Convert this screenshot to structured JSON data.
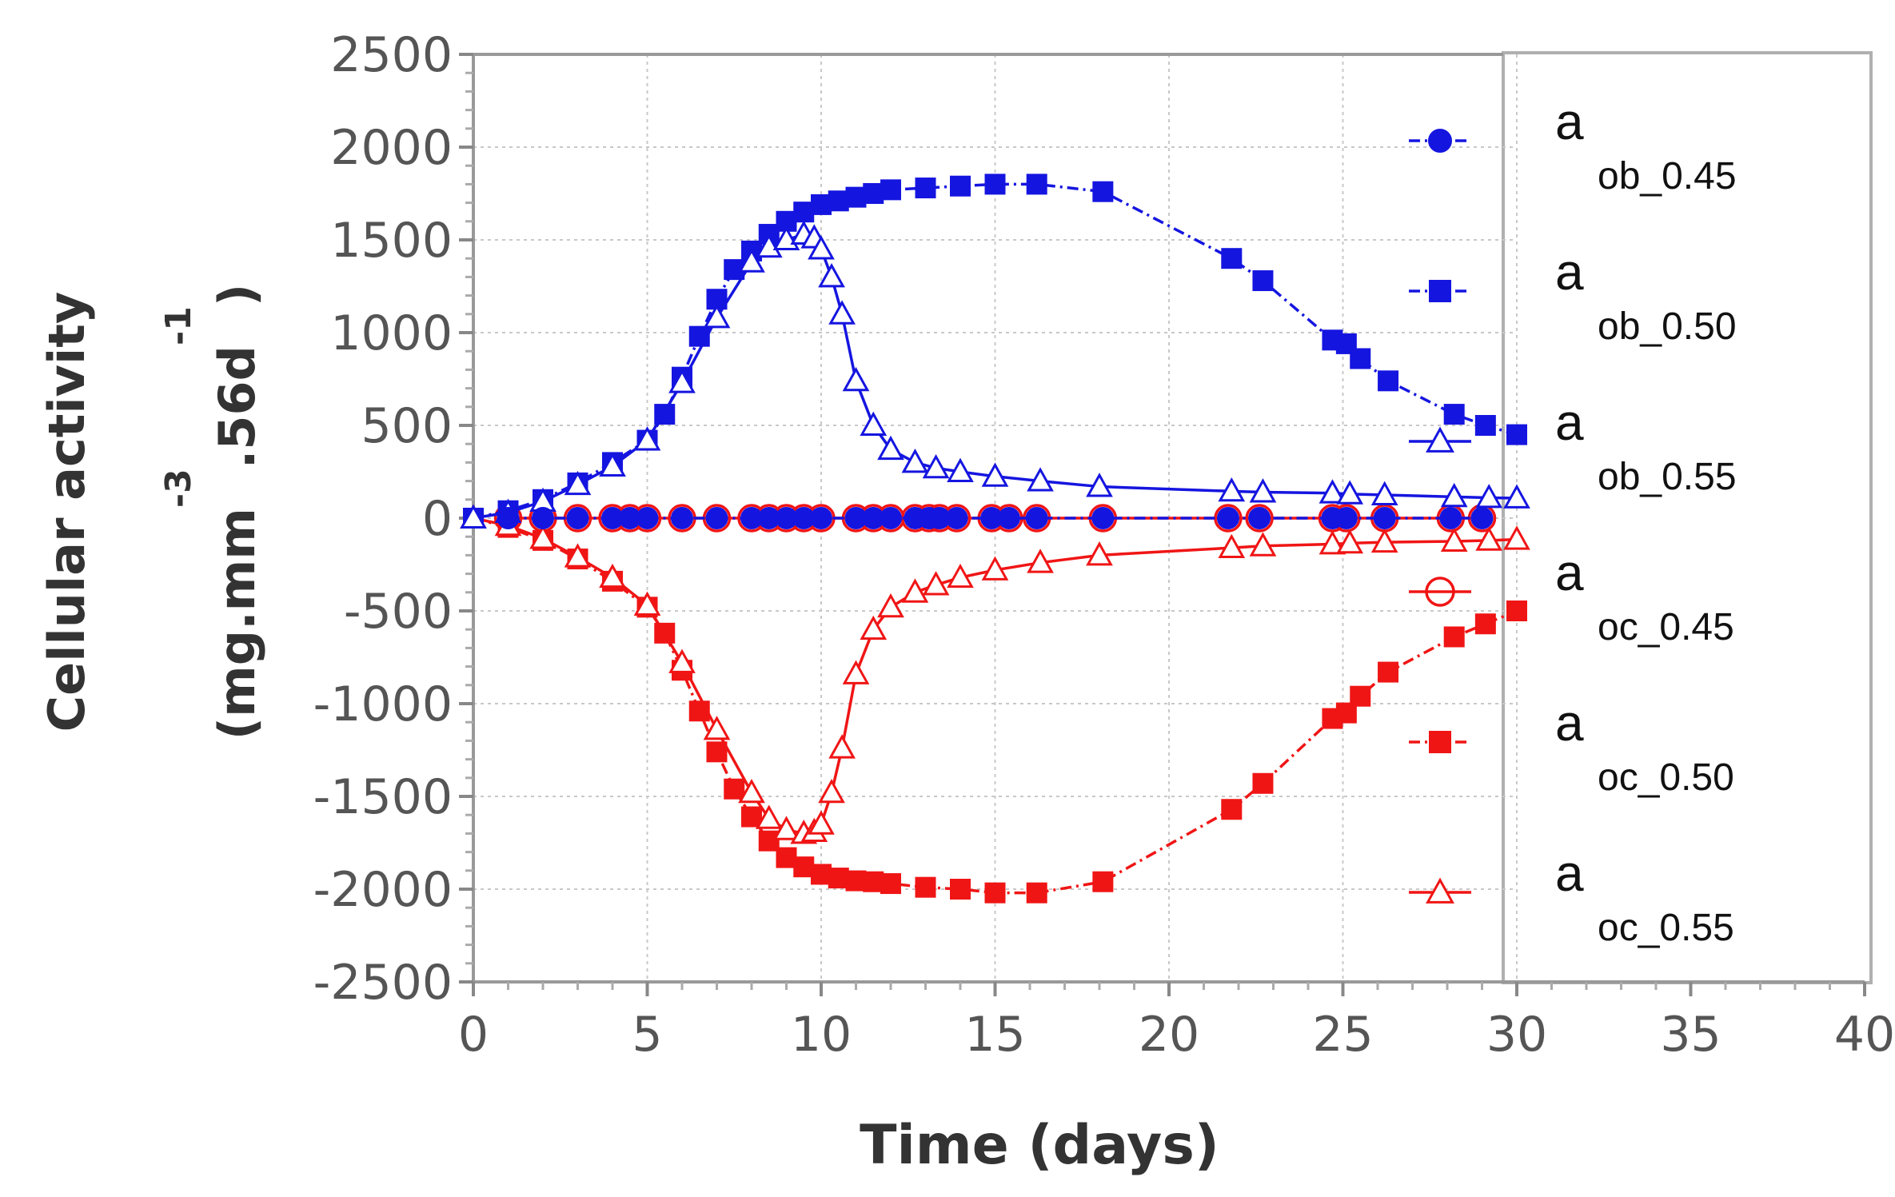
{
  "chart_data": {
    "type": "line",
    "xlabel": "Time (days)",
    "ylabel": {
      "line1": "Cellular activity",
      "line2_prefix": "(mg.mm",
      "line2_exp1": "-3",
      "line2_mid": ".56d",
      "line2_exp2": "-1",
      "line2_suffix": ")"
    },
    "xlim": [
      0,
      40
    ],
    "ylim": [
      -2500,
      2500
    ],
    "x_ticks": [
      "0",
      "5",
      "10",
      "15",
      "20",
      "25",
      "30",
      "35",
      "40"
    ],
    "y_ticks": [
      "2500",
      "2000",
      "1500",
      "1000",
      "500",
      "0",
      "-500",
      "-1000",
      "-1500",
      "-2000",
      "-2500"
    ],
    "grid": true,
    "legend_position": "right",
    "colors": {
      "blue": "#1515e0",
      "red": "#f01515",
      "grid": "#c8c8c8",
      "frame": "#b0b0b0"
    },
    "series": [
      {
        "legend_main": "a",
        "legend_sub": "ob_0.45",
        "color": "blue",
        "marker": "filled-circle",
        "line": "dashdot",
        "x": [
          1,
          2,
          3,
          4,
          4.5,
          5,
          6,
          7,
          8,
          8.5,
          9,
          9.5,
          10,
          11,
          11.5,
          12,
          12.7,
          13.1,
          13.4,
          13.9,
          14.9,
          15.4,
          16.2,
          18.1,
          21.7,
          22.6,
          24.7,
          25.1,
          26.2,
          28.1,
          29
        ],
        "y": [
          0,
          0,
          0,
          0,
          0,
          0,
          0,
          0,
          0,
          0,
          0,
          0,
          0,
          0,
          0,
          0,
          0,
          0,
          0,
          0,
          0,
          0,
          0,
          0,
          0,
          0,
          0,
          0,
          0,
          0,
          0
        ]
      },
      {
        "legend_main": "a",
        "legend_sub": "ob_0.50",
        "color": "blue",
        "marker": "filled-square",
        "line": "dashdot",
        "x": [
          0,
          1,
          2,
          3,
          4,
          5,
          5.5,
          6,
          6.5,
          7,
          7.5,
          8,
          8.5,
          9,
          9.5,
          10,
          10.5,
          11,
          11.5,
          12,
          13,
          14,
          15,
          16.2,
          18.1,
          21.8,
          22.7,
          24.7,
          25.1,
          25.5,
          26.3,
          28.2,
          29.1,
          30
        ],
        "y": [
          0,
          40,
          100,
          190,
          300,
          420,
          560,
          760,
          980,
          1180,
          1340,
          1440,
          1530,
          1600,
          1650,
          1690,
          1710,
          1730,
          1750,
          1770,
          1780,
          1790,
          1800,
          1800,
          1760,
          1400,
          1280,
          960,
          940,
          860,
          740,
          560,
          500,
          450
        ]
      },
      {
        "legend_main": "a",
        "legend_sub": "ob_0.55",
        "color": "blue",
        "marker": "open-triangle",
        "line": "solid",
        "x": [
          0,
          1,
          2,
          3,
          4,
          5,
          6,
          7,
          8,
          8.5,
          9,
          9.5,
          9.8,
          10,
          10.3,
          10.6,
          11,
          11.5,
          12,
          12.7,
          13.3,
          14,
          15,
          16.3,
          18,
          21.8,
          22.7,
          24.7,
          25.2,
          26.2,
          28.2,
          29.2,
          30
        ],
        "y": [
          0,
          30,
          90,
          180,
          280,
          420,
          730,
          1080,
          1380,
          1460,
          1500,
          1530,
          1510,
          1450,
          1300,
          1100,
          740,
          500,
          370,
          300,
          270,
          250,
          225,
          200,
          170,
          145,
          140,
          135,
          130,
          125,
          115,
          110,
          108
        ]
      },
      {
        "legend_main": "a",
        "legend_sub": "oc_0.45",
        "color": "red",
        "marker": "open-circle",
        "line": "solid",
        "x": [
          1,
          2,
          3,
          4,
          4.5,
          5,
          6,
          7,
          8,
          8.5,
          9,
          9.5,
          10,
          11,
          11.5,
          12,
          12.7,
          13.1,
          13.4,
          13.9,
          14.9,
          15.4,
          16.2,
          18.1,
          21.7,
          22.6,
          24.7,
          25.1,
          26.2,
          28.1,
          29
        ],
        "y": [
          0,
          0,
          0,
          0,
          0,
          0,
          0,
          0,
          0,
          0,
          0,
          0,
          0,
          0,
          0,
          0,
          0,
          0,
          0,
          0,
          0,
          0,
          0,
          0,
          0,
          0,
          0,
          0,
          0,
          0,
          0
        ]
      },
      {
        "legend_main": "a",
        "legend_sub": "oc_0.50",
        "color": "red",
        "marker": "filled-square",
        "line": "dashdot",
        "x": [
          0,
          1,
          2,
          3,
          4,
          5,
          5.5,
          6,
          6.5,
          7,
          7.5,
          8,
          8.5,
          9,
          9.5,
          10,
          10.5,
          11,
          11.5,
          12,
          13,
          14,
          15,
          16.2,
          18.1,
          21.8,
          22.7,
          24.7,
          25.1,
          25.5,
          26.3,
          28.2,
          29.1,
          30
        ],
        "y": [
          0,
          -50,
          -120,
          -220,
          -340,
          -480,
          -620,
          -820,
          -1040,
          -1260,
          -1460,
          -1610,
          -1740,
          -1830,
          -1880,
          -1920,
          -1940,
          -1955,
          -1960,
          -1970,
          -1990,
          -2000,
          -2020,
          -2020,
          -1960,
          -1570,
          -1430,
          -1080,
          -1050,
          -960,
          -830,
          -640,
          -570,
          -500
        ]
      },
      {
        "legend_main": "a",
        "legend_sub": "oc_0.55",
        "color": "red",
        "marker": "open-triangle",
        "line": "solid",
        "x": [
          0,
          1,
          2,
          3,
          4,
          5,
          6,
          7,
          8,
          8.5,
          9,
          9.5,
          9.8,
          10,
          10.3,
          10.6,
          11,
          11.5,
          12,
          12.7,
          13.3,
          14,
          15,
          16.3,
          18,
          21.8,
          22.7,
          24.7,
          25.2,
          26.2,
          28.2,
          29.2,
          30
        ],
        "y": [
          0,
          -40,
          -110,
          -210,
          -320,
          -470,
          -780,
          -1140,
          -1480,
          -1620,
          -1680,
          -1700,
          -1690,
          -1650,
          -1480,
          -1240,
          -840,
          -600,
          -480,
          -400,
          -360,
          -320,
          -280,
          -240,
          -200,
          -160,
          -150,
          -140,
          -135,
          -130,
          -125,
          -120,
          -115
        ]
      }
    ]
  }
}
